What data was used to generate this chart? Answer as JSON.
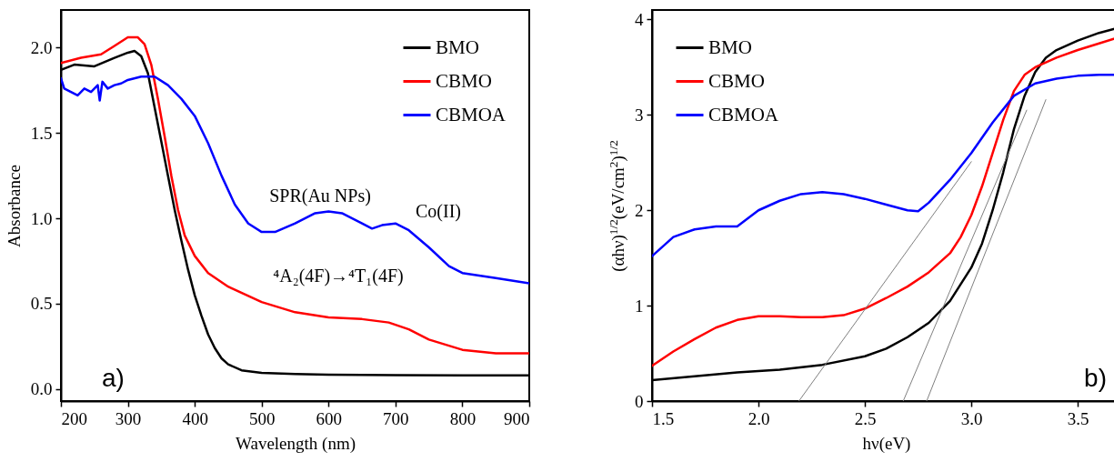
{
  "chart_data": [
    {
      "type": "line",
      "xlabel": "Wavelength (nm)",
      "ylabel": "Absorbance",
      "xlim": [
        200,
        900
      ],
      "ylim": [
        -0.07,
        2.22
      ],
      "xticks": [
        200,
        300,
        400,
        500,
        600,
        700,
        800,
        900
      ],
      "yticks": [
        {
          "value": 0,
          "label": "0.0"
        },
        0.5,
        {
          "value": 1,
          "label": "1.0"
        },
        1.5,
        {
          "value": 2,
          "label": "2.0"
        }
      ],
      "grid": false,
      "legend": "top right",
      "line_style": "solid",
      "series": [
        {
          "name": "BMO",
          "color": "#000000",
          "x": [
            200,
            220,
            250,
            280,
            300,
            310,
            320,
            330,
            340,
            350,
            360,
            370,
            380,
            390,
            400,
            410,
            420,
            430,
            440,
            450,
            470,
            500,
            550,
            600,
            700,
            800,
            900
          ],
          "values": [
            1.87,
            1.9,
            1.89,
            1.94,
            1.97,
            1.98,
            1.95,
            1.85,
            1.65,
            1.45,
            1.25,
            1.05,
            0.87,
            0.7,
            0.55,
            0.43,
            0.32,
            0.24,
            0.18,
            0.145,
            0.11,
            0.095,
            0.088,
            0.085,
            0.082,
            0.08,
            0.08
          ]
        },
        {
          "name": "CBMO",
          "color": "#ff0000",
          "x": [
            200,
            230,
            260,
            280,
            300,
            315,
            325,
            335,
            345,
            355,
            365,
            375,
            385,
            400,
            420,
            450,
            500,
            550,
            600,
            650,
            690,
            720,
            750,
            800,
            850,
            900
          ],
          "values": [
            1.91,
            1.94,
            1.96,
            2.01,
            2.06,
            2.06,
            2.02,
            1.9,
            1.7,
            1.48,
            1.25,
            1.05,
            0.9,
            0.78,
            0.68,
            0.6,
            0.51,
            0.45,
            0.42,
            0.41,
            0.39,
            0.35,
            0.29,
            0.23,
            0.21,
            0.21
          ]
        },
        {
          "name": "CBMOA",
          "color": "#0000ff",
          "x": [
            200,
            205,
            215,
            225,
            235,
            245,
            255,
            258,
            262,
            270,
            280,
            290,
            300,
            320,
            340,
            360,
            380,
            400,
            420,
            440,
            460,
            480,
            500,
            520,
            550,
            580,
            600,
            620,
            650,
            665,
            680,
            700,
            720,
            750,
            780,
            800,
            850,
            900
          ],
          "values": [
            1.82,
            1.76,
            1.74,
            1.72,
            1.76,
            1.74,
            1.78,
            1.69,
            1.8,
            1.76,
            1.78,
            1.79,
            1.81,
            1.83,
            1.83,
            1.78,
            1.7,
            1.6,
            1.44,
            1.25,
            1.08,
            0.97,
            0.92,
            0.92,
            0.97,
            1.03,
            1.04,
            1.03,
            0.97,
            0.94,
            0.96,
            0.97,
            0.93,
            0.83,
            0.72,
            0.68,
            0.65,
            0.62
          ]
        }
      ],
      "annotations": [
        "SPR(Au NPs)",
        "Co(II)",
        "⁴A₂(4F)→⁴T₁(4F)",
        "a)"
      ]
    },
    {
      "type": "line",
      "xlabel": "hν(eV)",
      "ylabel": "(αhν)$^{1/2}$(eV/cm$^{2}$)$^{1/2}$",
      "xlim": [
        1.5,
        3.7
      ],
      "ylim": [
        0,
        4.1
      ],
      "xticks": [
        1.5,
        {
          "value": 2,
          "label": "2.0"
        },
        2.5,
        {
          "value": 3,
          "label": "3.0"
        },
        3.5
      ],
      "yticks": [
        0,
        1,
        2,
        3,
        4
      ],
      "grid": false,
      "legend": "top left",
      "line_style": "solid",
      "series": [
        {
          "name": "BMO",
          "color": "#000000",
          "x": [
            1.5,
            1.7,
            1.9,
            2.1,
            2.3,
            2.5,
            2.6,
            2.7,
            2.8,
            2.9,
            3.0,
            3.05,
            3.1,
            3.15,
            3.2,
            3.25,
            3.3,
            3.35,
            3.4,
            3.5,
            3.6,
            3.7
          ],
          "values": [
            0.22,
            0.26,
            0.3,
            0.33,
            0.38,
            0.47,
            0.55,
            0.67,
            0.82,
            1.05,
            1.4,
            1.65,
            2.0,
            2.4,
            2.85,
            3.2,
            3.45,
            3.6,
            3.68,
            3.78,
            3.86,
            3.92
          ]
        },
        {
          "name": "CBMO",
          "color": "#ff0000",
          "x": [
            1.5,
            1.6,
            1.7,
            1.8,
            1.9,
            2.0,
            2.1,
            2.2,
            2.3,
            2.4,
            2.5,
            2.6,
            2.7,
            2.8,
            2.9,
            2.95,
            3.0,
            3.05,
            3.1,
            3.15,
            3.2,
            3.25,
            3.3,
            3.4,
            3.5,
            3.6,
            3.7
          ],
          "values": [
            0.37,
            0.52,
            0.65,
            0.77,
            0.85,
            0.89,
            0.89,
            0.88,
            0.88,
            0.9,
            0.97,
            1.08,
            1.2,
            1.35,
            1.55,
            1.72,
            1.95,
            2.25,
            2.6,
            2.95,
            3.25,
            3.42,
            3.5,
            3.6,
            3.68,
            3.75,
            3.82
          ]
        },
        {
          "name": "CBMOA",
          "color": "#0000ff",
          "x": [
            1.5,
            1.6,
            1.7,
            1.8,
            1.9,
            2.0,
            2.1,
            2.2,
            2.3,
            2.4,
            2.5,
            2.6,
            2.7,
            2.75,
            2.8,
            2.9,
            3.0,
            3.1,
            3.2,
            3.3,
            3.4,
            3.5,
            3.6,
            3.7
          ],
          "values": [
            1.52,
            1.72,
            1.8,
            1.83,
            1.83,
            2.0,
            2.1,
            2.17,
            2.19,
            2.17,
            2.12,
            2.06,
            2.0,
            1.99,
            2.08,
            2.32,
            2.6,
            2.92,
            3.2,
            3.33,
            3.38,
            3.41,
            3.42,
            3.42
          ]
        },
        {
          "color": "#808080",
          "x": [
            3.0,
            2.19
          ],
          "values": [
            2.51,
            0
          ]
        },
        {
          "color": "#808080",
          "x": [
            3.26,
            2.68
          ],
          "values": [
            3.05,
            0
          ]
        },
        {
          "color": "#808080",
          "x": [
            3.35,
            2.79
          ],
          "values": [
            3.16,
            0
          ]
        }
      ],
      "annotations": [
        "b)"
      ]
    }
  ]
}
